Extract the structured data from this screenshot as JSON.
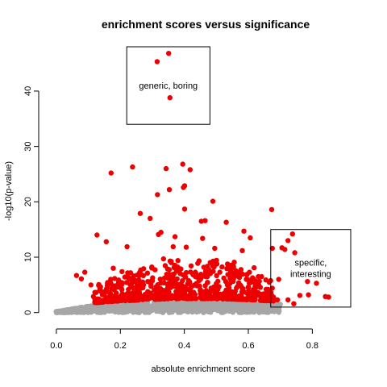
{
  "chart_data": {
    "type": "scatter",
    "title": "enrichment scores versus significance",
    "xlabel": "absolute enrichment score",
    "ylabel": "-log10(p-value)",
    "xlim": [
      -0.03,
      0.92
    ],
    "ylim": [
      -1.5,
      48
    ],
    "x_ticks": [
      "0.0",
      "0.2",
      "0.4",
      "0.6",
      "0.8"
    ],
    "x_tick_values": [
      0.0,
      0.2,
      0.4,
      0.6,
      0.8
    ],
    "y_ticks": [
      "0",
      "10",
      "20",
      "30",
      "40"
    ],
    "y_tick_values": [
      0,
      10,
      20,
      30,
      40
    ],
    "grid": false,
    "colors": {
      "significant": "#ee0000",
      "background": "#a6a6a6",
      "box": "#000000"
    },
    "annotations": [
      {
        "label": "generic, boring",
        "x_range": [
          0.22,
          0.48
        ],
        "y_range": [
          34,
          48
        ]
      },
      {
        "label_lines": [
          "specific,",
          "interesting"
        ],
        "x_range": [
          0.67,
          0.92
        ],
        "y_range": [
          1,
          15
        ]
      }
    ],
    "background_points": {
      "x_range": [
        0.0,
        0.7
      ],
      "y_max_at_x": [
        [
          0.0,
          0.2
        ],
        [
          0.1,
          1.2
        ],
        [
          0.2,
          1.6
        ],
        [
          0.35,
          2.0
        ],
        [
          0.5,
          2.0
        ],
        [
          0.6,
          1.8
        ],
        [
          0.7,
          1.5
        ]
      ]
    },
    "highlighted_points": [
      [
        0.315,
        45.3
      ],
      [
        0.351,
        46.8
      ],
      [
        0.355,
        38.8
      ],
      [
        0.395,
        26.8
      ],
      [
        0.238,
        26.3
      ],
      [
        0.343,
        26.0
      ],
      [
        0.418,
        25.8
      ],
      [
        0.171,
        25.2
      ],
      [
        0.401,
        22.9
      ],
      [
        0.397,
        22.6
      ],
      [
        0.353,
        22.2
      ],
      [
        0.316,
        21.3
      ],
      [
        0.489,
        20.1
      ],
      [
        0.262,
        17.9
      ],
      [
        0.401,
        18.7
      ],
      [
        0.293,
        17.0
      ],
      [
        0.453,
        16.5
      ],
      [
        0.465,
        16.6
      ],
      [
        0.673,
        18.6
      ],
      [
        0.531,
        16.3
      ],
      [
        0.586,
        14.7
      ],
      [
        0.327,
        14.5
      ],
      [
        0.127,
        14.0
      ],
      [
        0.319,
        14.1
      ],
      [
        0.371,
        13.7
      ],
      [
        0.457,
        13.4
      ],
      [
        0.606,
        13.5
      ],
      [
        0.738,
        14.2
      ],
      [
        0.724,
        13.0
      ],
      [
        0.705,
        11.7
      ],
      [
        0.675,
        11.6
      ],
      [
        0.714,
        11.4
      ],
      [
        0.745,
        10.8
      ],
      [
        0.156,
        12.8
      ],
      [
        0.221,
        11.9
      ],
      [
        0.365,
        11.9
      ],
      [
        0.406,
        11.8
      ],
      [
        0.495,
        11.6
      ],
      [
        0.581,
        11.2
      ],
      [
        0.089,
        7.3
      ],
      [
        0.063,
        6.7
      ],
      [
        0.078,
        6.1
      ],
      [
        0.108,
        5.0
      ],
      [
        0.132,
        4.9
      ],
      [
        0.178,
        8.0
      ],
      [
        0.205,
        7.4
      ],
      [
        0.298,
        8.1
      ],
      [
        0.335,
        9.7
      ],
      [
        0.442,
        8.9
      ],
      [
        0.511,
        7.3
      ],
      [
        0.556,
        9.1
      ],
      [
        0.618,
        8.1
      ],
      [
        0.655,
        5.9
      ],
      [
        0.695,
        6.0
      ],
      [
        0.785,
        5.6
      ],
      [
        0.813,
        5.3
      ],
      [
        0.691,
        2.3
      ],
      [
        0.724,
        2.3
      ],
      [
        0.761,
        3.1
      ],
      [
        0.788,
        3.2
      ],
      [
        0.841,
        2.9
      ],
      [
        0.851,
        2.8
      ],
      [
        0.742,
        1.6
      ],
      [
        0.601,
        4.5
      ],
      [
        0.543,
        5.3
      ],
      [
        0.472,
        6.5
      ],
      [
        0.381,
        7.6
      ],
      [
        0.264,
        6.9
      ],
      [
        0.239,
        5.5
      ],
      [
        0.192,
        4.6
      ],
      [
        0.151,
        3.5
      ],
      [
        0.116,
        2.9
      ],
      [
        0.421,
        4.6
      ],
      [
        0.571,
        3.0
      ],
      [
        0.631,
        3.6
      ]
    ]
  }
}
